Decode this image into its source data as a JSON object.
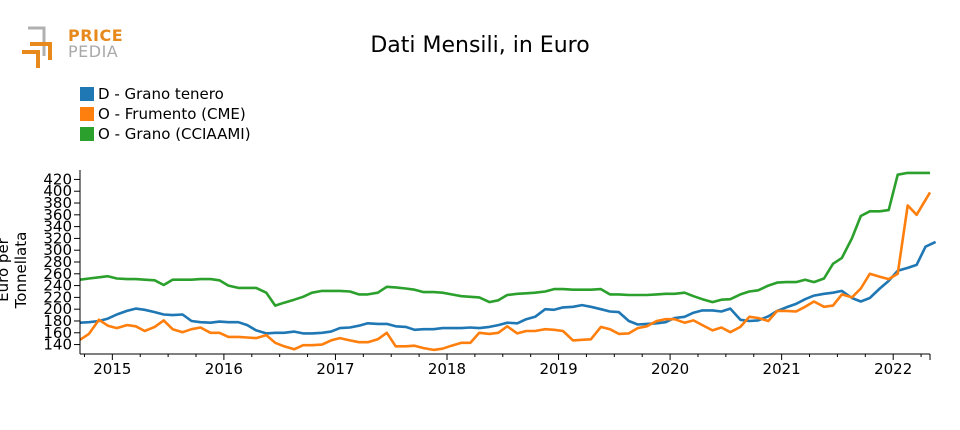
{
  "logo": {
    "line1": "PRICE",
    "line2": "PEDIA"
  },
  "colors": {
    "blue": "#1f77b4",
    "orange": "#ff7f0e",
    "green": "#2ca02c"
  },
  "chart_data": {
    "type": "line",
    "title": "Dati Mensili, in Euro",
    "xlabel": "",
    "ylabel": "Euro per Tonnellata",
    "xlim": [
      2014.71,
      2022.33
    ],
    "ylim": [
      124,
      436
    ],
    "x_ticks": [
      "2015",
      "2016",
      "2017",
      "2018",
      "2019",
      "2020",
      "2021",
      "2022"
    ],
    "y_ticks": [
      "140",
      "160",
      "180",
      "200",
      "220",
      "240",
      "260",
      "280",
      "300",
      "320",
      "340",
      "360",
      "380",
      "400",
      "420"
    ],
    "legend_position": "top-left",
    "grid": false,
    "series": [
      {
        "name": "D - Grano tenero",
        "color": "#1f77b4",
        "points": [
          [
            2014.71,
            177
          ],
          [
            2014.79,
            178
          ],
          [
            2014.88,
            180
          ],
          [
            2014.96,
            184
          ],
          [
            2015.04,
            191
          ],
          [
            2015.13,
            197
          ],
          [
            2015.21,
            201
          ],
          [
            2015.29,
            199
          ],
          [
            2015.38,
            195
          ],
          [
            2015.46,
            191
          ],
          [
            2015.54,
            190
          ],
          [
            2015.63,
            191
          ],
          [
            2015.71,
            180
          ],
          [
            2015.79,
            178
          ],
          [
            2015.88,
            177
          ],
          [
            2015.96,
            179
          ],
          [
            2016.04,
            178
          ],
          [
            2016.13,
            178
          ],
          [
            2016.21,
            173
          ],
          [
            2016.29,
            164
          ],
          [
            2016.38,
            159
          ],
          [
            2016.46,
            160
          ],
          [
            2016.54,
            160
          ],
          [
            2016.63,
            162
          ],
          [
            2016.71,
            159
          ],
          [
            2016.79,
            159
          ],
          [
            2016.88,
            160
          ],
          [
            2016.96,
            162
          ],
          [
            2017.04,
            168
          ],
          [
            2017.13,
            169
          ],
          [
            2017.21,
            172
          ],
          [
            2017.29,
            176
          ],
          [
            2017.38,
            175
          ],
          [
            2017.46,
            175
          ],
          [
            2017.54,
            171
          ],
          [
            2017.63,
            170
          ],
          [
            2017.71,
            165
          ],
          [
            2017.79,
            166
          ],
          [
            2017.88,
            166
          ],
          [
            2017.96,
            168
          ],
          [
            2018.04,
            168
          ],
          [
            2018.13,
            168
          ],
          [
            2018.21,
            169
          ],
          [
            2018.29,
            168
          ],
          [
            2018.38,
            170
          ],
          [
            2018.46,
            173
          ],
          [
            2018.54,
            177
          ],
          [
            2018.63,
            176
          ],
          [
            2018.71,
            183
          ],
          [
            2018.79,
            187
          ],
          [
            2018.88,
            200
          ],
          [
            2018.96,
            199
          ],
          [
            2019.04,
            203
          ],
          [
            2019.13,
            204
          ],
          [
            2019.21,
            207
          ],
          [
            2019.29,
            204
          ],
          [
            2019.38,
            200
          ],
          [
            2019.46,
            196
          ],
          [
            2019.54,
            195
          ],
          [
            2019.63,
            180
          ],
          [
            2019.71,
            174
          ],
          [
            2019.79,
            175
          ],
          [
            2019.88,
            176
          ],
          [
            2019.96,
            178
          ],
          [
            2020.04,
            185
          ],
          [
            2020.13,
            187
          ],
          [
            2020.21,
            194
          ],
          [
            2020.29,
            198
          ],
          [
            2020.38,
            198
          ],
          [
            2020.46,
            196
          ],
          [
            2020.54,
            201
          ],
          [
            2020.63,
            182
          ],
          [
            2020.71,
            180
          ],
          [
            2020.79,
            181
          ],
          [
            2020.88,
            188
          ],
          [
            2020.96,
            197
          ],
          [
            2021.04,
            203
          ],
          [
            2021.13,
            209
          ],
          [
            2021.21,
            217
          ],
          [
            2021.29,
            223
          ],
          [
            2021.38,
            226
          ],
          [
            2021.46,
            228
          ],
          [
            2021.54,
            231
          ],
          [
            2021.63,
            219
          ],
          [
            2021.71,
            213
          ],
          [
            2021.79,
            219
          ],
          [
            2021.88,
            235
          ],
          [
            2021.96,
            248
          ],
          [
            2022.04,
            265
          ],
          [
            2022.13,
            270
          ],
          [
            2022.21,
            275
          ],
          [
            2022.29,
            306
          ],
          [
            2022.38,
            314
          ]
        ]
      },
      {
        "name": "O - Frumento (CME)",
        "color": "#ff7f0e",
        "points": [
          [
            2014.71,
            148
          ],
          [
            2014.79,
            158
          ],
          [
            2014.88,
            182
          ],
          [
            2014.96,
            172
          ],
          [
            2015.04,
            168
          ],
          [
            2015.13,
            173
          ],
          [
            2015.21,
            171
          ],
          [
            2015.29,
            163
          ],
          [
            2015.38,
            170
          ],
          [
            2015.46,
            181
          ],
          [
            2015.54,
            166
          ],
          [
            2015.63,
            161
          ],
          [
            2015.71,
            166
          ],
          [
            2015.79,
            169
          ],
          [
            2015.88,
            160
          ],
          [
            2015.96,
            160
          ],
          [
            2016.04,
            153
          ],
          [
            2016.13,
            153
          ],
          [
            2016.21,
            152
          ],
          [
            2016.29,
            151
          ],
          [
            2016.38,
            156
          ],
          [
            2016.46,
            143
          ],
          [
            2016.54,
            137
          ],
          [
            2016.63,
            132
          ],
          [
            2016.71,
            139
          ],
          [
            2016.79,
            139
          ],
          [
            2016.88,
            140
          ],
          [
            2016.96,
            147
          ],
          [
            2017.04,
            151
          ],
          [
            2017.13,
            147
          ],
          [
            2017.21,
            144
          ],
          [
            2017.29,
            144
          ],
          [
            2017.38,
            149
          ],
          [
            2017.46,
            160
          ],
          [
            2017.54,
            137
          ],
          [
            2017.63,
            137
          ],
          [
            2017.71,
            138
          ],
          [
            2017.79,
            134
          ],
          [
            2017.88,
            131
          ],
          [
            2017.96,
            133
          ],
          [
            2018.04,
            138
          ],
          [
            2018.13,
            143
          ],
          [
            2018.21,
            143
          ],
          [
            2018.29,
            160
          ],
          [
            2018.38,
            158
          ],
          [
            2018.46,
            160
          ],
          [
            2018.54,
            171
          ],
          [
            2018.63,
            159
          ],
          [
            2018.71,
            163
          ],
          [
            2018.79,
            163
          ],
          [
            2018.88,
            166
          ],
          [
            2018.96,
            165
          ],
          [
            2019.04,
            163
          ],
          [
            2019.13,
            147
          ],
          [
            2019.21,
            148
          ],
          [
            2019.29,
            149
          ],
          [
            2019.38,
            170
          ],
          [
            2019.46,
            166
          ],
          [
            2019.54,
            158
          ],
          [
            2019.63,
            159
          ],
          [
            2019.71,
            168
          ],
          [
            2019.79,
            171
          ],
          [
            2019.88,
            180
          ],
          [
            2019.96,
            183
          ],
          [
            2020.04,
            183
          ],
          [
            2020.13,
            177
          ],
          [
            2020.21,
            181
          ],
          [
            2020.29,
            173
          ],
          [
            2020.38,
            164
          ],
          [
            2020.46,
            169
          ],
          [
            2020.54,
            161
          ],
          [
            2020.63,
            170
          ],
          [
            2020.71,
            187
          ],
          [
            2020.79,
            185
          ],
          [
            2020.88,
            180
          ],
          [
            2020.96,
            197
          ],
          [
            2021.04,
            197
          ],
          [
            2021.13,
            196
          ],
          [
            2021.21,
            204
          ],
          [
            2021.29,
            213
          ],
          [
            2021.38,
            204
          ],
          [
            2021.46,
            206
          ],
          [
            2021.54,
            225
          ],
          [
            2021.63,
            220
          ],
          [
            2021.71,
            235
          ],
          [
            2021.79,
            260
          ],
          [
            2021.88,
            255
          ],
          [
            2021.96,
            251
          ],
          [
            2022.04,
            260
          ],
          [
            2022.13,
            376
          ],
          [
            2022.21,
            360
          ],
          [
            2022.33,
            398
          ]
        ]
      },
      {
        "name": "O - Grano (CCIAAMI)",
        "color": "#2ca02c",
        "points": [
          [
            2014.71,
            250
          ],
          [
            2014.79,
            252
          ],
          [
            2014.88,
            254
          ],
          [
            2014.96,
            256
          ],
          [
            2015.04,
            252
          ],
          [
            2015.13,
            251
          ],
          [
            2015.21,
            251
          ],
          [
            2015.29,
            250
          ],
          [
            2015.38,
            249
          ],
          [
            2015.46,
            241
          ],
          [
            2015.54,
            250
          ],
          [
            2015.63,
            250
          ],
          [
            2015.71,
            250
          ],
          [
            2015.79,
            251
          ],
          [
            2015.88,
            251
          ],
          [
            2015.96,
            249
          ],
          [
            2016.04,
            240
          ],
          [
            2016.13,
            236
          ],
          [
            2016.21,
            236
          ],
          [
            2016.29,
            236
          ],
          [
            2016.38,
            228
          ],
          [
            2016.46,
            206
          ],
          [
            2016.54,
            211
          ],
          [
            2016.63,
            216
          ],
          [
            2016.71,
            221
          ],
          [
            2016.79,
            228
          ],
          [
            2016.88,
            231
          ],
          [
            2016.96,
            231
          ],
          [
            2017.04,
            231
          ],
          [
            2017.13,
            230
          ],
          [
            2017.21,
            225
          ],
          [
            2017.29,
            225
          ],
          [
            2017.38,
            228
          ],
          [
            2017.46,
            238
          ],
          [
            2017.54,
            237
          ],
          [
            2017.63,
            235
          ],
          [
            2017.71,
            233
          ],
          [
            2017.79,
            229
          ],
          [
            2017.88,
            229
          ],
          [
            2017.96,
            228
          ],
          [
            2018.04,
            225
          ],
          [
            2018.13,
            222
          ],
          [
            2018.21,
            221
          ],
          [
            2018.29,
            220
          ],
          [
            2018.38,
            212
          ],
          [
            2018.46,
            215
          ],
          [
            2018.54,
            224
          ],
          [
            2018.63,
            226
          ],
          [
            2018.71,
            227
          ],
          [
            2018.79,
            228
          ],
          [
            2018.88,
            230
          ],
          [
            2018.96,
            234
          ],
          [
            2019.04,
            234
          ],
          [
            2019.13,
            233
          ],
          [
            2019.21,
            233
          ],
          [
            2019.29,
            233
          ],
          [
            2019.38,
            234
          ],
          [
            2019.46,
            225
          ],
          [
            2019.54,
            225
          ],
          [
            2019.63,
            224
          ],
          [
            2019.71,
            224
          ],
          [
            2019.79,
            224
          ],
          [
            2019.88,
            225
          ],
          [
            2019.96,
            226
          ],
          [
            2020.04,
            226
          ],
          [
            2020.13,
            228
          ],
          [
            2020.21,
            222
          ],
          [
            2020.29,
            217
          ],
          [
            2020.38,
            212
          ],
          [
            2020.46,
            216
          ],
          [
            2020.54,
            217
          ],
          [
            2020.63,
            225
          ],
          [
            2020.71,
            230
          ],
          [
            2020.79,
            232
          ],
          [
            2020.88,
            240
          ],
          [
            2020.96,
            245
          ],
          [
            2021.04,
            246
          ],
          [
            2021.13,
            246
          ],
          [
            2021.21,
            250
          ],
          [
            2021.29,
            246
          ],
          [
            2021.38,
            252
          ],
          [
            2021.46,
            277
          ],
          [
            2021.54,
            287
          ],
          [
            2021.63,
            320
          ],
          [
            2021.71,
            358
          ],
          [
            2021.79,
            366
          ],
          [
            2021.88,
            366
          ],
          [
            2021.96,
            368
          ],
          [
            2022.04,
            428
          ],
          [
            2022.13,
            431
          ],
          [
            2022.33,
            431
          ]
        ]
      }
    ]
  }
}
